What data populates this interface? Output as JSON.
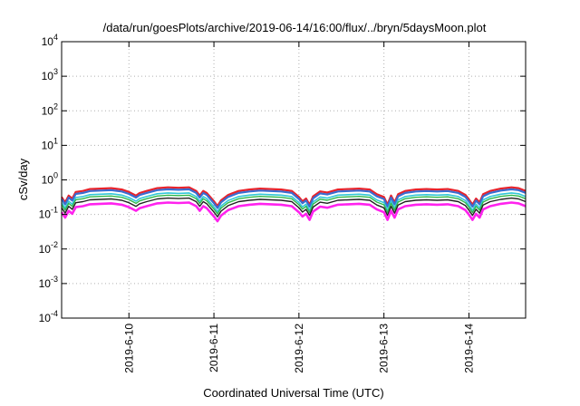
{
  "chart_data": {
    "type": "line",
    "title": "/data/run/goesPlots/archive/2019-06-14/16:00/flux/../bryn/5daysMoon.plot",
    "xlabel": "Coordinated Universal Time (UTC)",
    "ylabel": "cSv/day",
    "y_scale": "log",
    "ylim": [
      0.0001,
      10000
    ],
    "y_ticks": [
      {
        "base": "10",
        "exp": "4",
        "value": 10000
      },
      {
        "base": "10",
        "exp": "3",
        "value": 1000
      },
      {
        "base": "10",
        "exp": "2",
        "value": 100
      },
      {
        "base": "10",
        "exp": "1",
        "value": 10
      },
      {
        "base": "10",
        "exp": "0",
        "value": 1
      },
      {
        "base": "10",
        "exp": "-1",
        "value": 0.1
      },
      {
        "base": "10",
        "exp": "-2",
        "value": 0.01
      },
      {
        "base": "10",
        "exp": "-3",
        "value": 0.001
      },
      {
        "base": "10",
        "exp": "-4",
        "value": 0.0001
      }
    ],
    "x_start": "2019-06-09 05:00",
    "x_end": "2019-06-14 16:00",
    "x_ticks": [
      {
        "label": "2019-6-10",
        "time": "2019-06-10 00:00"
      },
      {
        "label": "2019-6-11",
        "time": "2019-06-11 00:00"
      },
      {
        "label": "2019-6-12",
        "time": "2019-06-12 00:00"
      },
      {
        "label": "2019-6-13",
        "time": "2019-06-13 00:00"
      },
      {
        "label": "2019-6-14",
        "time": "2019-06-14 00:00"
      }
    ],
    "grid": true,
    "series_style": [
      {
        "color": "#e8222a",
        "scale": 1.6,
        "width": 2.2
      },
      {
        "color": "#3a6cd0",
        "scale": 1.4,
        "width": 2.2
      },
      {
        "color": "#33c7d8",
        "scale": 1.1,
        "width": 1.6
      },
      {
        "color": "#2eb84a",
        "scale": 0.95,
        "width": 1.4
      },
      {
        "color": "#222222",
        "scale": 0.78,
        "width": 1.4
      },
      {
        "color": "#ff22ee",
        "scale": 0.58,
        "width": 2.6
      }
    ],
    "base_values": [
      [
        "2019-06-09 05:00",
        0.2
      ],
      [
        "2019-06-09 06:00",
        0.14
      ],
      [
        "2019-06-09 07:00",
        0.22
      ],
      [
        "2019-06-09 08:00",
        0.18
      ],
      [
        "2019-06-09 09:00",
        0.28
      ],
      [
        "2019-06-09 11:00",
        0.3
      ],
      [
        "2019-06-09 13:00",
        0.34
      ],
      [
        "2019-06-09 16:00",
        0.35
      ],
      [
        "2019-06-09 19:00",
        0.36
      ],
      [
        "2019-06-09 22:00",
        0.33
      ],
      [
        "2019-06-10 00:00",
        0.28
      ],
      [
        "2019-06-10 02:00",
        0.22
      ],
      [
        "2019-06-10 03:00",
        0.26
      ],
      [
        "2019-06-10 05:00",
        0.3
      ],
      [
        "2019-06-10 08:00",
        0.36
      ],
      [
        "2019-06-10 11:00",
        0.38
      ],
      [
        "2019-06-10 14:00",
        0.37
      ],
      [
        "2019-06-10 17:00",
        0.38
      ],
      [
        "2019-06-10 19:00",
        0.3
      ],
      [
        "2019-06-10 20:00",
        0.22
      ],
      [
        "2019-06-10 21:00",
        0.3
      ],
      [
        "2019-06-10 22:00",
        0.26
      ],
      [
        "2019-06-11 00:00",
        0.15
      ],
      [
        "2019-06-11 01:00",
        0.11
      ],
      [
        "2019-06-11 02:00",
        0.16
      ],
      [
        "2019-06-11 04:00",
        0.23
      ],
      [
        "2019-06-11 07:00",
        0.3
      ],
      [
        "2019-06-11 10:00",
        0.33
      ],
      [
        "2019-06-11 13:00",
        0.35
      ],
      [
        "2019-06-11 16:00",
        0.34
      ],
      [
        "2019-06-11 19:00",
        0.33
      ],
      [
        "2019-06-11 22:00",
        0.3
      ],
      [
        "2019-06-12 00:00",
        0.2
      ],
      [
        "2019-06-12 01:00",
        0.15
      ],
      [
        "2019-06-12 02:00",
        0.18
      ],
      [
        "2019-06-12 03:00",
        0.12
      ],
      [
        "2019-06-12 04:00",
        0.21
      ],
      [
        "2019-06-12 06:00",
        0.29
      ],
      [
        "2019-06-12 08:00",
        0.27
      ],
      [
        "2019-06-12 11:00",
        0.33
      ],
      [
        "2019-06-12 14:00",
        0.34
      ],
      [
        "2019-06-12 17:00",
        0.35
      ],
      [
        "2019-06-12 20:00",
        0.33
      ],
      [
        "2019-06-12 22:00",
        0.24
      ],
      [
        "2019-06-13 00:00",
        0.2
      ],
      [
        "2019-06-13 01:00",
        0.12
      ],
      [
        "2019-06-13 02:00",
        0.22
      ],
      [
        "2019-06-13 03:00",
        0.14
      ],
      [
        "2019-06-13 04:00",
        0.24
      ],
      [
        "2019-06-13 06:00",
        0.3
      ],
      [
        "2019-06-13 09:00",
        0.33
      ],
      [
        "2019-06-13 12:00",
        0.34
      ],
      [
        "2019-06-13 15:00",
        0.33
      ],
      [
        "2019-06-13 18:00",
        0.34
      ],
      [
        "2019-06-13 21:00",
        0.3
      ],
      [
        "2019-06-13 23:00",
        0.23
      ],
      [
        "2019-06-14 00:00",
        0.17
      ],
      [
        "2019-06-14 01:00",
        0.12
      ],
      [
        "2019-06-14 02:00",
        0.18
      ],
      [
        "2019-06-14 03:00",
        0.14
      ],
      [
        "2019-06-14 04:00",
        0.24
      ],
      [
        "2019-06-14 06:00",
        0.3
      ],
      [
        "2019-06-14 09:00",
        0.35
      ],
      [
        "2019-06-14 12:00",
        0.38
      ],
      [
        "2019-06-14 14:00",
        0.36
      ],
      [
        "2019-06-14 16:00",
        0.3
      ]
    ]
  }
}
